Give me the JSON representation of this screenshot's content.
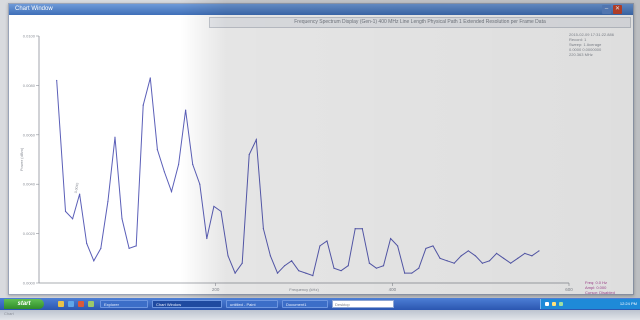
{
  "window": {
    "title": "Chart Window",
    "header": "Frequency Spectrum Display (Gen-1) 400 MHz Line Length Physical Path 1 Extended Resolution per Frame Data"
  },
  "info": {
    "line1": "2015-02-09 17:31:22.886",
    "line2": "Record: 1",
    "line3": "Sweep: 1  Average",
    "line4": "0.0000  0.0000000",
    "line5": "220.363 MHz"
  },
  "bottom_legend": {
    "line1": "Freq: 0.0  Hz",
    "line2": "Ampl: 0.000",
    "line3": "Cursor: Disabled"
  },
  "chart_data": {
    "type": "line",
    "title": "",
    "xlabel": "Frequency (kHz)",
    "ylabel": "Power (dBm)",
    "xlim": [
      0,
      600
    ],
    "ylim": [
      0,
      0.01
    ],
    "x_ticks": [
      "200",
      "400",
      "600"
    ],
    "y_ticks": [
      "0.0000",
      "0.0020",
      "0.0040",
      "0.0060",
      "0.0080",
      "0.0100"
    ],
    "annotation": "0.0045",
    "color": "#5b5fb8",
    "series": [
      {
        "name": "",
        "x": [
          20,
          30,
          38,
          46,
          54,
          62,
          70,
          78,
          86,
          94,
          102,
          110,
          118,
          126,
          134,
          142,
          150,
          158,
          166,
          174,
          182,
          190,
          198,
          206,
          214,
          222,
          230,
          238,
          246,
          254,
          262,
          270,
          278,
          286,
          294,
          302,
          310,
          318,
          326,
          334,
          342,
          350,
          358,
          366,
          374,
          382,
          390,
          398,
          406,
          414,
          422,
          430,
          438,
          446,
          454,
          462,
          470,
          478,
          486,
          494,
          502,
          510,
          518,
          526,
          534,
          542,
          550,
          558,
          566
        ],
        "y": [
          0.0082,
          0.0029,
          0.0026,
          0.0036,
          0.0016,
          0.0009,
          0.0014,
          0.0033,
          0.0059,
          0.0026,
          0.0014,
          0.0015,
          0.0072,
          0.0083,
          0.0054,
          0.0045,
          0.0037,
          0.0048,
          0.007,
          0.0048,
          0.004,
          0.0018,
          0.0031,
          0.0029,
          0.0011,
          0.0004,
          0.0008,
          0.0052,
          0.0058,
          0.0022,
          0.0011,
          0.0004,
          0.0007,
          0.0009,
          0.0005,
          0.0004,
          0.0003,
          0.0015,
          0.0017,
          0.0006,
          0.0005,
          0.0007,
          0.0022,
          0.0022,
          0.0008,
          0.0006,
          0.0007,
          0.0018,
          0.0015,
          0.0004,
          0.0004,
          0.0006,
          0.0014,
          0.0015,
          0.001,
          0.0009,
          0.0008,
          0.0011,
          0.0013,
          0.0011,
          0.0008,
          0.0009,
          0.0012,
          0.001,
          0.0008,
          0.001,
          0.0012,
          0.0011,
          0.0013
        ]
      }
    ]
  },
  "taskbar": {
    "start_label": "start",
    "tasks": [
      "Explorer",
      "Chart Window",
      "untitled - Paint",
      "Document1"
    ],
    "search_placeholder": "Desktop",
    "clock": "12:24 PM"
  },
  "colors": {
    "titlebar": "#3f6fb8",
    "taskbar": "#2b56b0",
    "start": "#2f8c2a",
    "series": "#5b5fb8",
    "legend_text": "#b0489a"
  },
  "reflection_text": "Chart"
}
